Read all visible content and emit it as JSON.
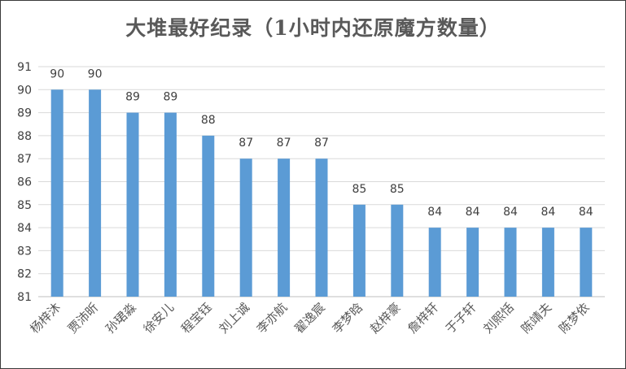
{
  "chart_data": {
    "type": "bar",
    "title": "大堆最好纪录（1小时内还原魔方数量）",
    "xlabel": "",
    "ylabel": "",
    "ylim": [
      81,
      91
    ],
    "yticks": [
      81,
      82,
      83,
      84,
      85,
      86,
      87,
      88,
      89,
      90,
      91
    ],
    "grid": true,
    "legend": "none",
    "bar_color": "#5B9BD5",
    "categories": [
      "杨梓沐",
      "贾沛昕",
      "孙珺淼",
      "徐安儿",
      "程宝钰",
      "刘上诚",
      "李亦航",
      "翟逸宸",
      "李梦晗",
      "赵梓豪",
      "詹梓轩",
      "于子轩",
      "刘熙恬",
      "陈靖夫",
      "陈梦依"
    ],
    "values": [
      90,
      90,
      89,
      89,
      88,
      87,
      87,
      87,
      85,
      85,
      84,
      84,
      84,
      84,
      84
    ]
  }
}
